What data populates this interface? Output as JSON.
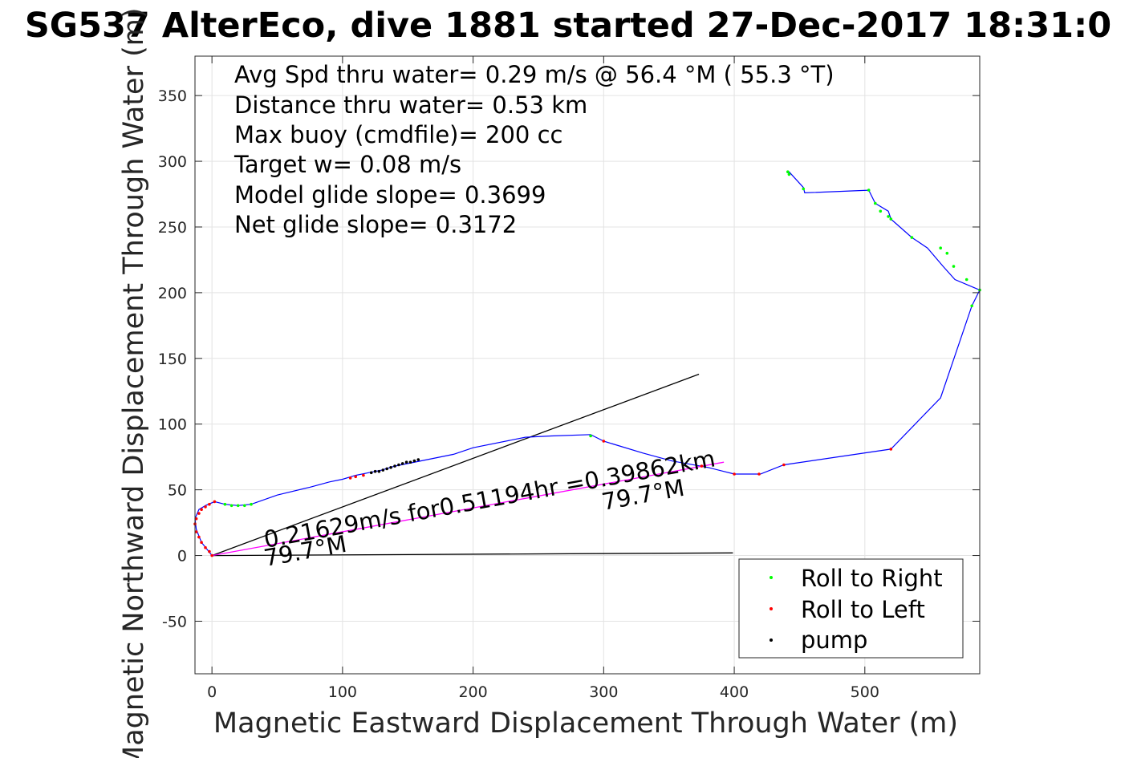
{
  "chart_data": {
    "type": "line",
    "title": "SG537 AlterEco, dive 1881 started 27-Dec-2017 18:31:0",
    "xlabel": "Magnetic Eastward Displacement Through Water (m)",
    "ylabel": "Magnetic Northward Displacement Through Water (m)",
    "xlim": [
      -13,
      588
    ],
    "ylim": [
      -90,
      380
    ],
    "xticks": [
      0,
      100,
      200,
      300,
      400,
      500
    ],
    "yticks": [
      -50,
      0,
      50,
      100,
      150,
      200,
      250,
      300,
      350
    ],
    "xtick_labels": [
      "0",
      "100",
      "200",
      "300",
      "400",
      "500"
    ],
    "ytick_labels": [
      "-50",
      "0",
      "50",
      "100",
      "150",
      "200",
      "250",
      "300",
      "350"
    ],
    "grid": true,
    "legend_location": "bottom-right",
    "stats": [
      "Avg Spd thru water=  0.29 m/s @  56.4 °M ( 55.3 °T)",
      "Distance thru water=  0.53 km",
      "Max buoy (cmdfile)= 200 cc",
      "Target w= 0.08 m/s",
      "Model glide slope= 0.3699",
      "Net glide slope= 0.3172"
    ],
    "annotations": {
      "net_speed": "0.21629m/s for0.51194hr =0.39862km",
      "heading_1": "79.7°M",
      "heading_2": "79.7°M"
    },
    "track": {
      "name": "track",
      "color": "#0000ff",
      "x": [
        0,
        -8,
        -12,
        -13,
        -10,
        -5,
        2,
        10,
        20,
        30,
        50,
        75,
        90,
        100,
        110,
        120,
        130,
        140,
        150,
        160,
        185,
        200,
        240,
        260,
        290,
        300,
        330,
        352,
        380,
        400,
        420,
        438,
        520,
        558,
        582,
        588,
        569,
        560,
        548,
        536,
        520,
        518,
        508,
        503,
        454,
        453,
        442
      ],
      "y": [
        0,
        10,
        20,
        28,
        35,
        38,
        41,
        39,
        38,
        39,
        46,
        52,
        56,
        58,
        61,
        63,
        65,
        68,
        70,
        72,
        77,
        82,
        90,
        91,
        92,
        87,
        78,
        72,
        67,
        62,
        62,
        69,
        81,
        120,
        190,
        202,
        210,
        220,
        234,
        242,
        256,
        262,
        268,
        278,
        276,
        280,
        292
      ]
    },
    "net_displacement_line": {
      "color": "#ff00ff",
      "x": [
        0,
        392
      ],
      "y": [
        0,
        71
      ]
    },
    "reference_lines": [
      {
        "color": "#000000",
        "x": [
          0,
          373
        ],
        "y": [
          0,
          138
        ]
      },
      {
        "color": "#000000",
        "x": [
          0,
          399
        ],
        "y": [
          0,
          2
        ]
      }
    ],
    "series": [
      {
        "name": "Roll to Right",
        "color": "#00ff00",
        "x": [
          10,
          15,
          20,
          25,
          30,
          290,
          441,
          442,
          453,
          503,
          508,
          512,
          518,
          520,
          536,
          558,
          563,
          568,
          578,
          588,
          582
        ],
        "y": [
          39,
          38,
          38,
          38,
          39,
          91,
          292,
          290,
          279,
          278,
          268,
          262,
          258,
          256,
          242,
          234,
          230,
          220,
          210,
          202,
          190
        ]
      },
      {
        "name": "Roll to Left",
        "color": "#ff0000",
        "x": [
          0,
          -2,
          -5,
          -8,
          -10,
          -12,
          -13,
          -12,
          -10,
          -8,
          -5,
          -2,
          2,
          106,
          110,
          116,
          300,
          375,
          400,
          419,
          438,
          520
        ],
        "y": [
          0,
          3,
          6,
          10,
          14,
          18,
          24,
          28,
          32,
          35,
          37,
          39,
          41,
          59,
          60,
          61,
          87,
          68,
          62,
          62,
          69,
          81
        ]
      },
      {
        "name": "pump",
        "color": "#000000",
        "x": [
          122,
          125,
          128,
          131,
          134,
          137,
          140,
          143,
          146,
          149,
          152,
          155,
          158
        ],
        "y": [
          63,
          64,
          64,
          65,
          66,
          67,
          68,
          69,
          70,
          71,
          71,
          72,
          73
        ]
      }
    ],
    "legend": [
      "Roll to Right",
      "Roll to Left",
      "pump"
    ]
  }
}
